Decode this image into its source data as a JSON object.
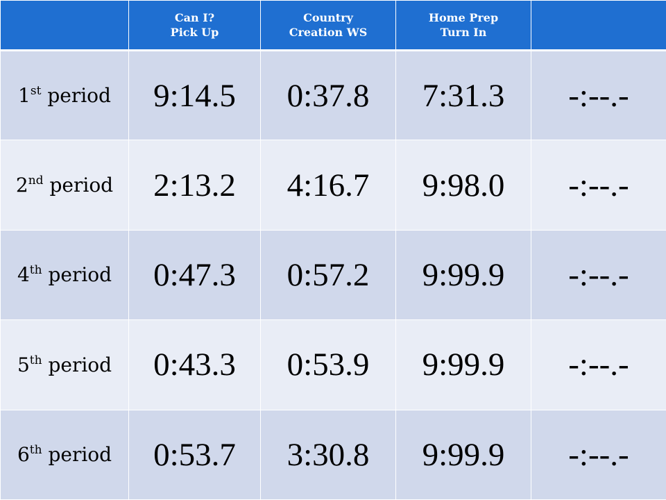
{
  "header": {
    "col0": "",
    "col1_line1": "Can I?",
    "col1_line2": "Pick Up",
    "col2_line1": "Country",
    "col2_line2": "Creation WS",
    "col3_line1": "Home Prep",
    "col3_line2": "Turn In",
    "col4": ""
  },
  "rows": [
    {
      "num": "1",
      "suffix": "st",
      "label": " period",
      "v1": "9:14.5",
      "v2": "0:37.8",
      "v3": "7:31.3",
      "v4": "-:--.-"
    },
    {
      "num": "2",
      "suffix": "nd",
      "label": " period",
      "v1": "2:13.2",
      "v2": "4:16.7",
      "v3": "9:98.0",
      "v4": "-:--.-"
    },
    {
      "num": "4",
      "suffix": "th",
      "label": " period",
      "v1": "0:47.3",
      "v2": "0:57.2",
      "v3": "9:99.9",
      "v4": "-:--.-"
    },
    {
      "num": "5",
      "suffix": "th",
      "label": " period",
      "v1": "0:43.3",
      "v2": "0:53.9",
      "v3": "9:99.9",
      "v4": "-:--.-"
    },
    {
      "num": "6",
      "suffix": "th",
      "label": " period",
      "v1": "0:53.7",
      "v2": "3:30.8",
      "v3": "9:99.9",
      "v4": "-:--.-"
    }
  ],
  "colors": {
    "header_bg": "#1f6fd1",
    "row_dark": "#d0d8eb",
    "row_light": "#e9edf6"
  }
}
